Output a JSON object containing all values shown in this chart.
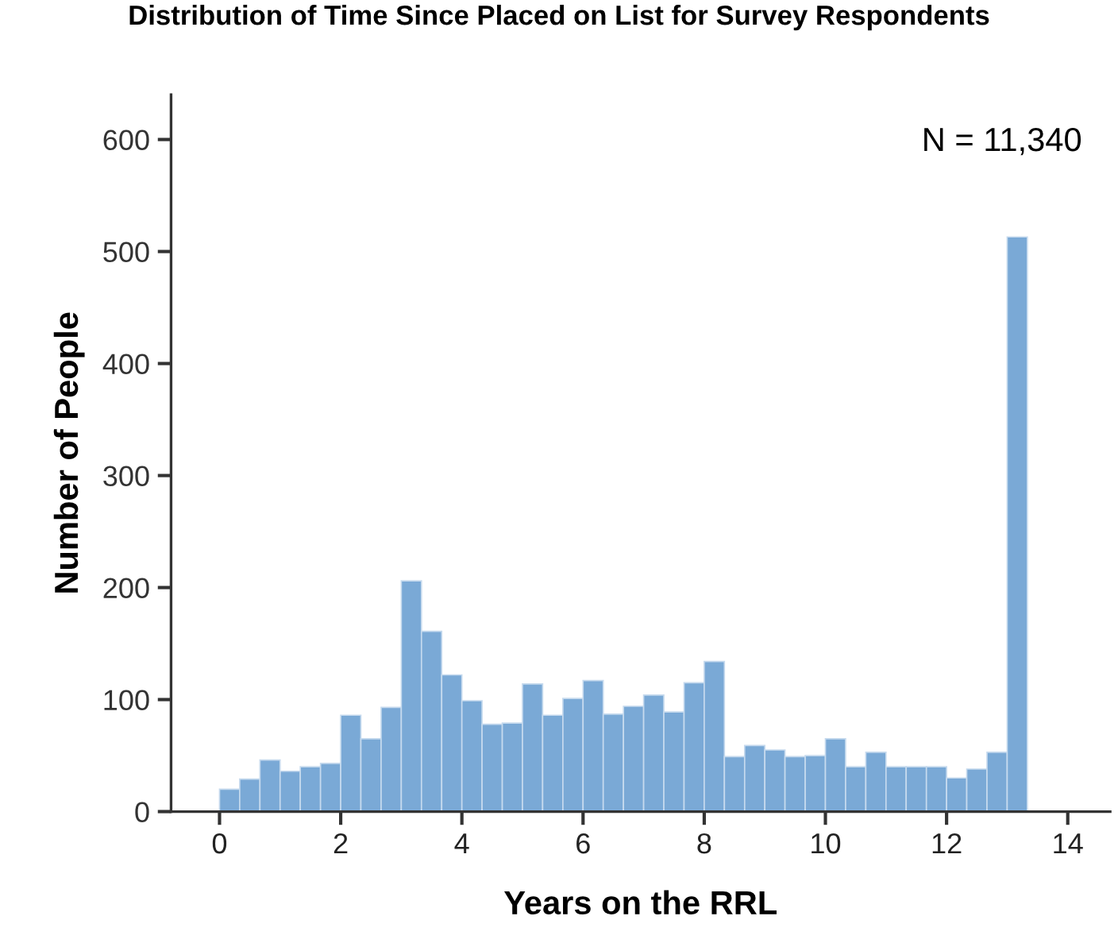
{
  "chart_data": {
    "type": "histogram",
    "title": "Distribution of Time Since Placed on List for Survey Respondents",
    "xlabel": "Years on the RRL",
    "ylabel": "Number of People",
    "annotations": [
      "N = 11,340"
    ],
    "bins": [
      0,
      0.333,
      0.667,
      1,
      1.333,
      1.667,
      2,
      2.333,
      2.667,
      3,
      3.333,
      3.667,
      4,
      4.333,
      4.667,
      5,
      5.333,
      5.667,
      6,
      6.333,
      6.667,
      7,
      7.333,
      7.667,
      8,
      8.333,
      8.667,
      9,
      9.333,
      9.667,
      10,
      10.333,
      10.667,
      11,
      11.333,
      11.667,
      12,
      12.333,
      12.667,
      13,
      13.333
    ],
    "values": [
      20,
      29,
      46,
      36,
      40,
      43,
      86,
      65,
      93,
      206,
      161,
      122,
      99,
      78,
      79,
      114,
      86,
      101,
      117,
      87,
      94,
      104,
      89,
      115,
      134,
      49,
      59,
      55,
      49,
      50,
      65,
      40,
      53,
      40,
      40,
      40,
      30,
      38,
      53,
      513
    ],
    "color": "#7aa9d6",
    "xlim": [
      -0.8,
      14.7
    ],
    "ylim": [
      0,
      640
    ],
    "xticks": [
      0,
      2,
      4,
      6,
      8,
      10,
      12,
      14
    ],
    "yticks": [
      0,
      100,
      200,
      300,
      400,
      500,
      600
    ],
    "grid": false,
    "legend": false
  }
}
